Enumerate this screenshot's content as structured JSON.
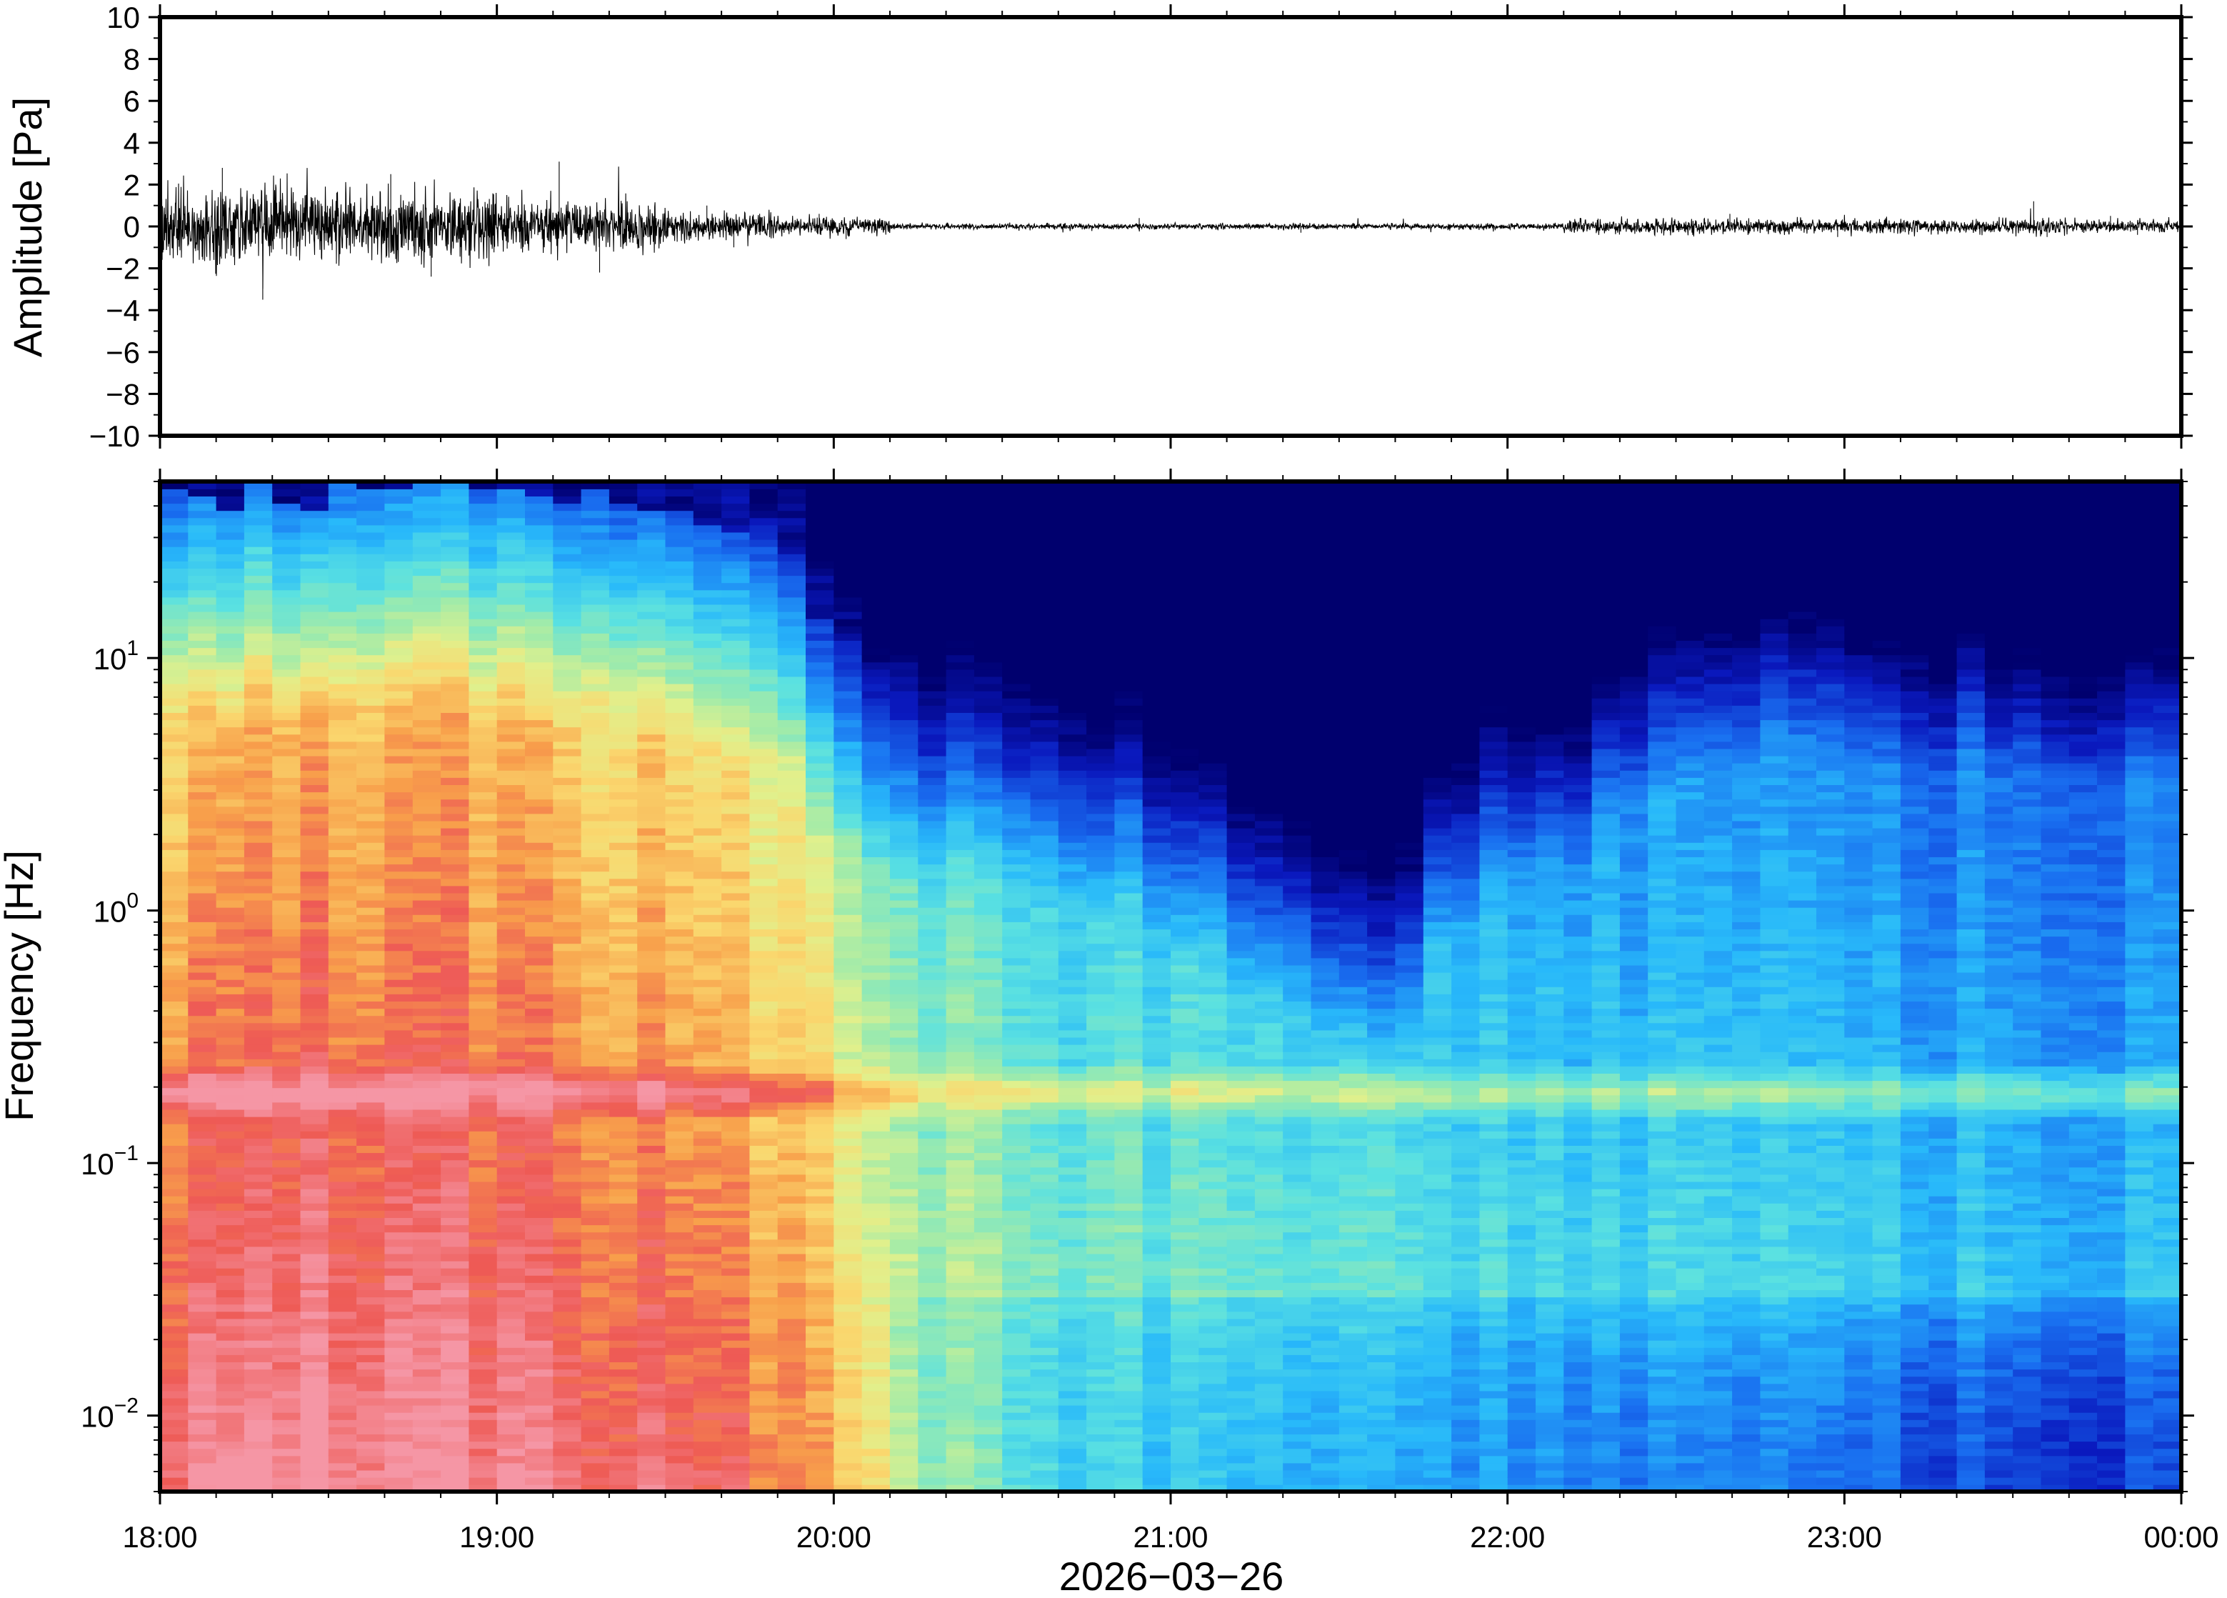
{
  "chart_data": [
    {
      "type": "line",
      "panel": "waveform",
      "ylabel": "Amplitude [Pa]",
      "ylim": [
        -10,
        10
      ],
      "y_ticks": [
        "10",
        "8",
        "6",
        "4",
        "2",
        "0",
        "−2",
        "−4",
        "−6",
        "−8",
        "−10"
      ],
      "y_tick_values": [
        10,
        8,
        6,
        4,
        2,
        0,
        -2,
        -4,
        -6,
        -8,
        -10
      ],
      "x_range": [
        "18:00",
        "00:00"
      ],
      "grid": false,
      "series": [
        {
          "segments": [
            {
              "from": "18:00",
              "to": "18:30",
              "envelope": 1.6,
              "peak_max": 2.8,
              "peak_min": -3.5
            },
            {
              "from": "18:30",
              "to": "19:00",
              "envelope": 1.5,
              "peak_max": 2.5,
              "peak_min": -2.4
            },
            {
              "from": "19:00",
              "to": "19:30",
              "envelope": 1.0,
              "peak_max": 3.1,
              "peak_min": -2.2
            },
            {
              "from": "19:30",
              "to": "19:50",
              "envelope": 0.6,
              "peak_max": 1.0,
              "peak_min": -1.0
            },
            {
              "from": "19:50",
              "to": "20:10",
              "envelope": 0.35,
              "peak_max": 0.6,
              "peak_min": -0.6
            },
            {
              "from": "20:10",
              "to": "22:10",
              "envelope": 0.12,
              "peak_max": 0.4,
              "peak_min": -0.3
            },
            {
              "from": "22:10",
              "to": "23:30",
              "envelope": 0.3,
              "peak_max": 0.6,
              "peak_min": -0.5
            },
            {
              "from": "23:30",
              "to": "23:40",
              "envelope": 0.35,
              "peak_max": 1.2,
              "peak_min": -0.5
            },
            {
              "from": "23:40",
              "to": "00:00",
              "envelope": 0.25,
              "peak_max": 0.5,
              "peak_min": -0.4
            }
          ]
        }
      ]
    },
    {
      "type": "heatmap",
      "panel": "spectrogram",
      "ylabel": "Frequency [Hz]",
      "xlabel": "2026−03−26",
      "y_scale": "log",
      "ylim": [
        0.005,
        50
      ],
      "y_ticks": [
        {
          "base": "10",
          "exp": "1",
          "value": 10
        },
        {
          "base": "10",
          "exp": "0",
          "value": 1
        },
        {
          "base": "10",
          "exp": "−1",
          "value": 0.1
        },
        {
          "base": "10",
          "exp": "−2",
          "value": 0.01
        }
      ],
      "x_ticks": [
        "18:00",
        "19:00",
        "20:00",
        "21:00",
        "22:00",
        "23:00",
        "00:00"
      ],
      "colormap": "jet",
      "microbarom_band_hz": 0.19,
      "time_profile": [
        {
          "time": "18:00",
          "high_freq_dark_hz": 45,
          "low_freq_energy": 0.95
        },
        {
          "time": "18:30",
          "high_freq_dark_hz": 45,
          "low_freq_energy": 1.0
        },
        {
          "time": "19:00",
          "high_freq_dark_hz": 45,
          "low_freq_energy": 0.97
        },
        {
          "time": "19:30",
          "high_freq_dark_hz": 42,
          "low_freq_energy": 0.9
        },
        {
          "time": "19:50",
          "high_freq_dark_hz": 32,
          "low_freq_energy": 0.82
        },
        {
          "time": "20:00",
          "high_freq_dark_hz": 12,
          "low_freq_energy": 0.7
        },
        {
          "time": "20:20",
          "high_freq_dark_hz": 10,
          "low_freq_energy": 0.52
        },
        {
          "time": "20:40",
          "high_freq_dark_hz": 9,
          "low_freq_energy": 0.45
        },
        {
          "time": "21:00",
          "high_freq_dark_hz": 6,
          "low_freq_energy": 0.4
        },
        {
          "time": "21:20",
          "high_freq_dark_hz": 3,
          "low_freq_energy": 0.38
        },
        {
          "time": "21:40",
          "high_freq_dark_hz": 1.5,
          "low_freq_energy": 0.35
        },
        {
          "time": "21:50",
          "high_freq_dark_hz": 8,
          "low_freq_energy": 0.35
        },
        {
          "time": "22:10",
          "high_freq_dark_hz": 10,
          "low_freq_energy": 0.32
        },
        {
          "time": "22:30",
          "high_freq_dark_hz": 30,
          "low_freq_energy": 0.3
        },
        {
          "time": "23:00",
          "high_freq_dark_hz": 32,
          "low_freq_energy": 0.28
        },
        {
          "time": "23:30",
          "high_freq_dark_hz": 28,
          "low_freq_energy": 0.22
        },
        {
          "time": "00:00",
          "high_freq_dark_hz": 25,
          "low_freq_energy": 0.22
        }
      ]
    }
  ]
}
